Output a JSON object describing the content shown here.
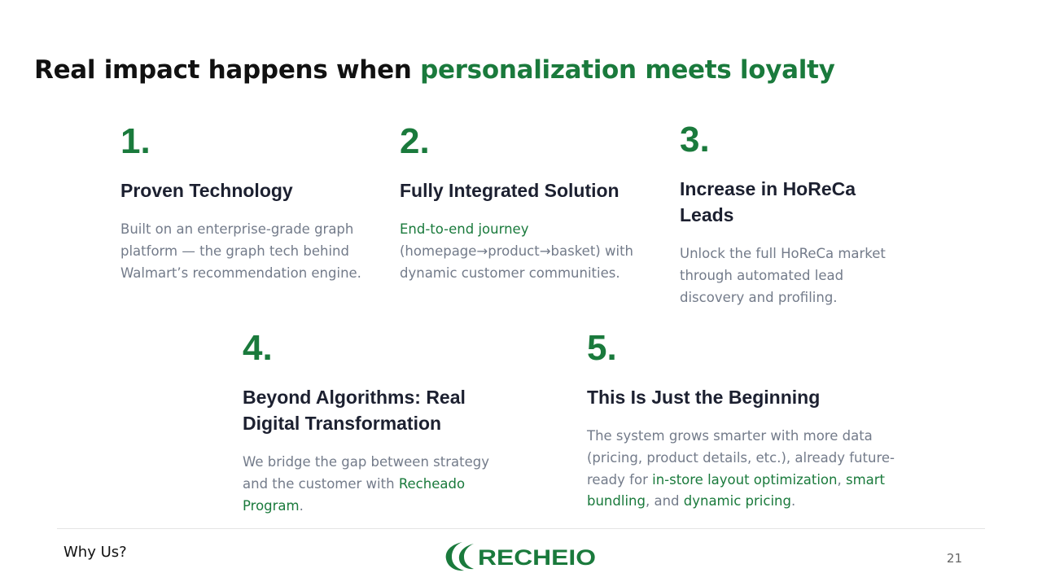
{
  "slide": {
    "title_part1": "Real impact happens when ",
    "title_accent": "personalization meets loyalty"
  },
  "cards": [
    {
      "number": "1.",
      "heading": "Proven Technology",
      "body": "Built on an enterprise-grade graph platform — the graph tech behind Walmart’s recommendation engine."
    },
    {
      "number": "2.",
      "heading": "Fully Integrated Solution",
      "body_highlight": "End-to-end journey",
      "body_rest": " (homepage→product→basket) with dynamic customer communities."
    },
    {
      "number": "3.",
      "heading": "Increase in HoReCa Leads",
      "body": "Unlock the full HoReCa market through automated lead discovery and profiling."
    },
    {
      "number": "4.",
      "heading": "Beyond Algorithms: Real Digital Transformation",
      "body_intro": "We bridge the gap between strategy and the customer with ",
      "body_highlight": "Recheado Program",
      "body_end": "."
    },
    {
      "number": "5.",
      "heading": "This Is Just the Beginning",
      "body_intro": "The system grows smarter with more data (pricing, product details, etc.), already future-ready for ",
      "hl_1": "in-store layout optimization",
      "sep_1": ", ",
      "hl_2": "smart bundling",
      "sep_2": ", and ",
      "hl_3": "dynamic pricing",
      "body_end": "."
    }
  ],
  "footer": {
    "section_label": "Why Us?",
    "logo_text": "RECHEIO",
    "page_number": "21"
  },
  "colors": {
    "accent_green": "#1a7a3c",
    "heading": "#1c2030",
    "body_text": "#737b8a"
  }
}
